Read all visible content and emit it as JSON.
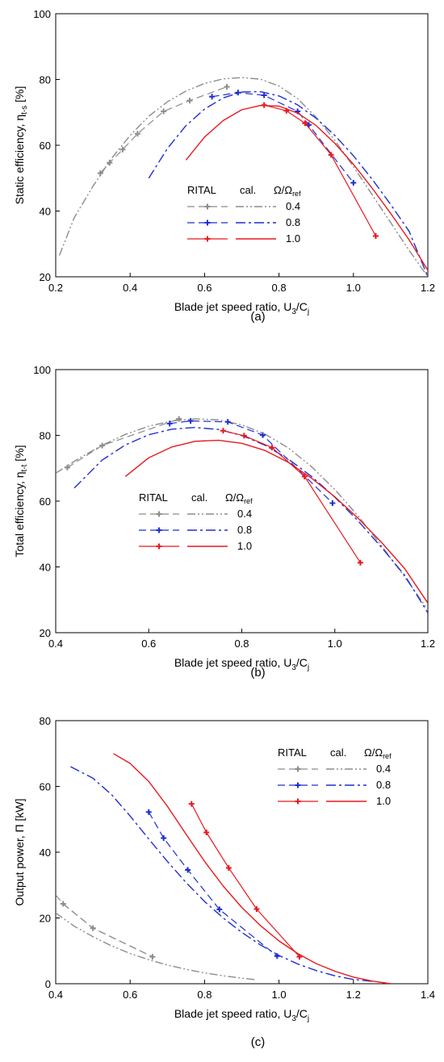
{
  "colors": {
    "s04": "#8c8c8c",
    "s08": "#1f2fd1",
    "s10": "#e8191f"
  },
  "legend": {
    "head_rital": "RITAL",
    "head_cal": "cal.",
    "head_omega": "Ω/Ω",
    "head_omega_sub": "ref",
    "row_04": "0.4",
    "row_08": "0.8",
    "row_10": "1.0"
  },
  "chart_data": [
    {
      "type": "line",
      "panel_label": "(a)",
      "xlabel": "Blade jet speed ratio, U",
      "xlabel_sub1": "3",
      "xlabel_mid": "/C",
      "xlabel_sub2": "j",
      "ylabel": "Static efficiency, η",
      "ylabel_sub": "t-s",
      "ylabel_unit": " [%]",
      "xlim": [
        0.2,
        1.2
      ],
      "ylim": [
        20,
        100
      ],
      "xticks": [
        "0.2",
        "0.4",
        "0.6",
        "0.8",
        "1.0",
        "1.2"
      ],
      "yticks": [
        "20",
        "40",
        "60",
        "80",
        "100"
      ],
      "legend_placement": "center",
      "series": [
        {
          "key": "s04",
          "kind": "RITAL",
          "x": [
            0.32,
            0.345,
            0.38,
            0.42,
            0.49,
            0.56,
            0.66
          ],
          "y": [
            51.5,
            54.7,
            58.7,
            63.5,
            70.3,
            73.6,
            77.8
          ]
        },
        {
          "key": "s04",
          "kind": "cal",
          "x": [
            0.21,
            0.25,
            0.3,
            0.35,
            0.4,
            0.45,
            0.5,
            0.55,
            0.6,
            0.65,
            0.7,
            0.75,
            0.8,
            0.85,
            0.9,
            0.95,
            1.0,
            1.05,
            1.1,
            1.15,
            1.2
          ],
          "y": [
            26.5,
            38,
            47.5,
            56,
            63,
            68.8,
            73.2,
            76.5,
            78.8,
            80.2,
            80.6,
            80.1,
            78,
            74.2,
            68.5,
            61.5,
            53.5,
            45,
            36.5,
            28,
            20
          ]
        },
        {
          "key": "s08",
          "kind": "RITAL",
          "x": [
            0.62,
            0.69,
            0.76,
            0.85,
            0.88,
            1.0
          ],
          "y": [
            74.8,
            76,
            75.2,
            70.3,
            66.2,
            48.6
          ]
        },
        {
          "key": "s08",
          "kind": "cal",
          "x": [
            0.45,
            0.5,
            0.55,
            0.6,
            0.65,
            0.7,
            0.75,
            0.8,
            0.85,
            0.9,
            0.95,
            1.0,
            1.05,
            1.1,
            1.15,
            1.2
          ],
          "y": [
            50,
            59,
            66,
            71,
            74.4,
            76.2,
            76.3,
            75,
            72.3,
            68.2,
            63,
            56.8,
            49.7,
            42,
            33.8,
            20
          ]
        },
        {
          "key": "s10",
          "kind": "RITAL",
          "x": [
            0.76,
            0.82,
            0.87,
            0.94,
            1.06
          ],
          "y": [
            72.2,
            70.5,
            66.7,
            57.1,
            32.4
          ]
        },
        {
          "key": "s10",
          "kind": "cal",
          "x": [
            0.55,
            0.6,
            0.65,
            0.7,
            0.75,
            0.8,
            0.85,
            0.9,
            0.95,
            1.0,
            1.05,
            1.1,
            1.15,
            1.2
          ],
          "y": [
            55.5,
            62.5,
            67.5,
            70.8,
            72.1,
            71.9,
            69.8,
            66,
            60.6,
            54.2,
            47,
            39.3,
            31.2,
            22
          ]
        }
      ]
    },
    {
      "type": "line",
      "panel_label": "(b)",
      "xlabel": "Blade jet speed ratio, U",
      "xlabel_sub1": "3",
      "xlabel_mid": "/C",
      "xlabel_sub2": "j",
      "ylabel": "Total efficiency, η",
      "ylabel_sub": "t-t",
      "ylabel_unit": " [%]",
      "xlim": [
        0.4,
        1.2
      ],
      "ylim": [
        20,
        100
      ],
      "xticks": [
        "0.4",
        "0.6",
        "0.8",
        "1.0",
        "1.2"
      ],
      "yticks": [
        "20",
        "40",
        "60",
        "80",
        "100"
      ],
      "legend_placement": "center-left",
      "series": [
        {
          "key": "s04",
          "kind": "RITAL",
          "x": [
            0.425,
            0.5,
            0.665
          ],
          "y": [
            70.2,
            76.9,
            85
          ]
        },
        {
          "key": "s04",
          "kind": "cal",
          "x": [
            0.4,
            0.45,
            0.5,
            0.55,
            0.6,
            0.65,
            0.7,
            0.75,
            0.8,
            0.85,
            0.9,
            0.95,
            1.0,
            1.05,
            1.1,
            1.15,
            1.2
          ],
          "y": [
            68.5,
            73,
            77,
            80.3,
            82.8,
            84.4,
            85,
            84.7,
            83.2,
            80.4,
            76.2,
            70.5,
            63.5,
            55.5,
            46.5,
            37,
            27
          ]
        },
        {
          "key": "s08",
          "kind": "RITAL",
          "x": [
            0.645,
            0.69,
            0.77,
            0.845,
            0.995
          ],
          "y": [
            83.6,
            84.4,
            84.1,
            80.1,
            59.4
          ]
        },
        {
          "key": "s08",
          "kind": "cal",
          "x": [
            0.44,
            0.5,
            0.55,
            0.6,
            0.65,
            0.7,
            0.75,
            0.8,
            0.85,
            0.9,
            0.95,
            1.0,
            1.05,
            1.1,
            1.15,
            1.2
          ],
          "y": [
            64,
            72.5,
            77.1,
            80.2,
            81.9,
            82.4,
            81.8,
            80,
            77,
            72.8,
            67.5,
            61.2,
            54,
            46,
            37.5,
            26
          ]
        },
        {
          "key": "s10",
          "kind": "RITAL",
          "x": [
            0.76,
            0.805,
            0.865,
            0.935,
            1.055
          ],
          "y": [
            81.4,
            79.9,
            76.3,
            67.5,
            41.3
          ]
        },
        {
          "key": "s10",
          "kind": "cal",
          "x": [
            0.55,
            0.6,
            0.65,
            0.7,
            0.75,
            0.8,
            0.85,
            0.9,
            0.95,
            1.0,
            1.05,
            1.1,
            1.15,
            1.2
          ],
          "y": [
            67.5,
            73.2,
            76.5,
            78.2,
            78.5,
            77.6,
            75.4,
            71.8,
            67,
            61.3,
            54.8,
            47.5,
            39.5,
            29
          ]
        }
      ]
    },
    {
      "type": "line",
      "panel_label": "(c)",
      "xlabel": "Blade jet speed ratio, U",
      "xlabel_sub1": "3",
      "xlabel_mid": "/C",
      "xlabel_sub2": "j",
      "ylabel": "Output power, Π [kW]",
      "ylabel_sub": "",
      "ylabel_unit": "",
      "xlim": [
        0.4,
        1.4
      ],
      "ylim": [
        0,
        80
      ],
      "xticks": [
        "0.4",
        "0.6",
        "0.8",
        "1.0",
        "1.2",
        "1.4"
      ],
      "yticks": [
        "0",
        "20",
        "40",
        "60",
        "80"
      ],
      "legend_placement": "top-right",
      "series": [
        {
          "key": "s04",
          "kind": "RITAL",
          "x": [
            0.42,
            0.5,
            0.66
          ],
          "y": [
            24.3,
            16.9,
            8.2
          ]
        },
        {
          "key": "s04",
          "kind": "cal",
          "x": [
            0.4,
            0.45,
            0.5,
            0.55,
            0.6,
            0.65,
            0.7,
            0.75,
            0.8,
            0.85,
            0.9,
            0.94
          ],
          "y": [
            21.5,
            17.5,
            14.3,
            11.5,
            9.2,
            7.3,
            5.7,
            4.4,
            3.3,
            2.4,
            1.7,
            1.2
          ]
        },
        {
          "key": "s04",
          "kind": "RITAL-line",
          "x": [
            0.4,
            0.42,
            0.5,
            0.66
          ],
          "y": [
            27,
            24.3,
            16.9,
            8.2
          ]
        },
        {
          "key": "s08",
          "kind": "RITAL",
          "x": [
            0.65,
            0.69,
            0.755,
            0.84,
            0.995
          ],
          "y": [
            52.2,
            44.3,
            34.6,
            22.6,
            8.4
          ]
        },
        {
          "key": "s08",
          "kind": "cal",
          "x": [
            0.44,
            0.5,
            0.55,
            0.6,
            0.65,
            0.7,
            0.75,
            0.8,
            0.85,
            0.9,
            0.95,
            1.0,
            1.05,
            1.1,
            1.15,
            1.2,
            1.25
          ],
          "y": [
            66,
            62.5,
            57.5,
            51,
            44,
            37.2,
            30.8,
            25,
            20,
            15.6,
            11.8,
            8.6,
            6,
            4,
            2.4,
            1.3,
            0.7
          ]
        },
        {
          "key": "s10",
          "kind": "RITAL",
          "x": [
            0.765,
            0.805,
            0.865,
            0.94,
            1.055
          ],
          "y": [
            54.7,
            46,
            35.2,
            22.7,
            8.2
          ]
        },
        {
          "key": "s10",
          "kind": "cal",
          "x": [
            0.555,
            0.6,
            0.65,
            0.7,
            0.75,
            0.8,
            0.85,
            0.9,
            0.95,
            1.0,
            1.05,
            1.1,
            1.15,
            1.2,
            1.25,
            1.3
          ],
          "y": [
            70,
            67,
            61.5,
            54,
            45.5,
            37.2,
            29.7,
            23.2,
            17.7,
            13,
            9.2,
            6.1,
            3.8,
            2,
            0.8,
            0
          ]
        }
      ]
    }
  ]
}
